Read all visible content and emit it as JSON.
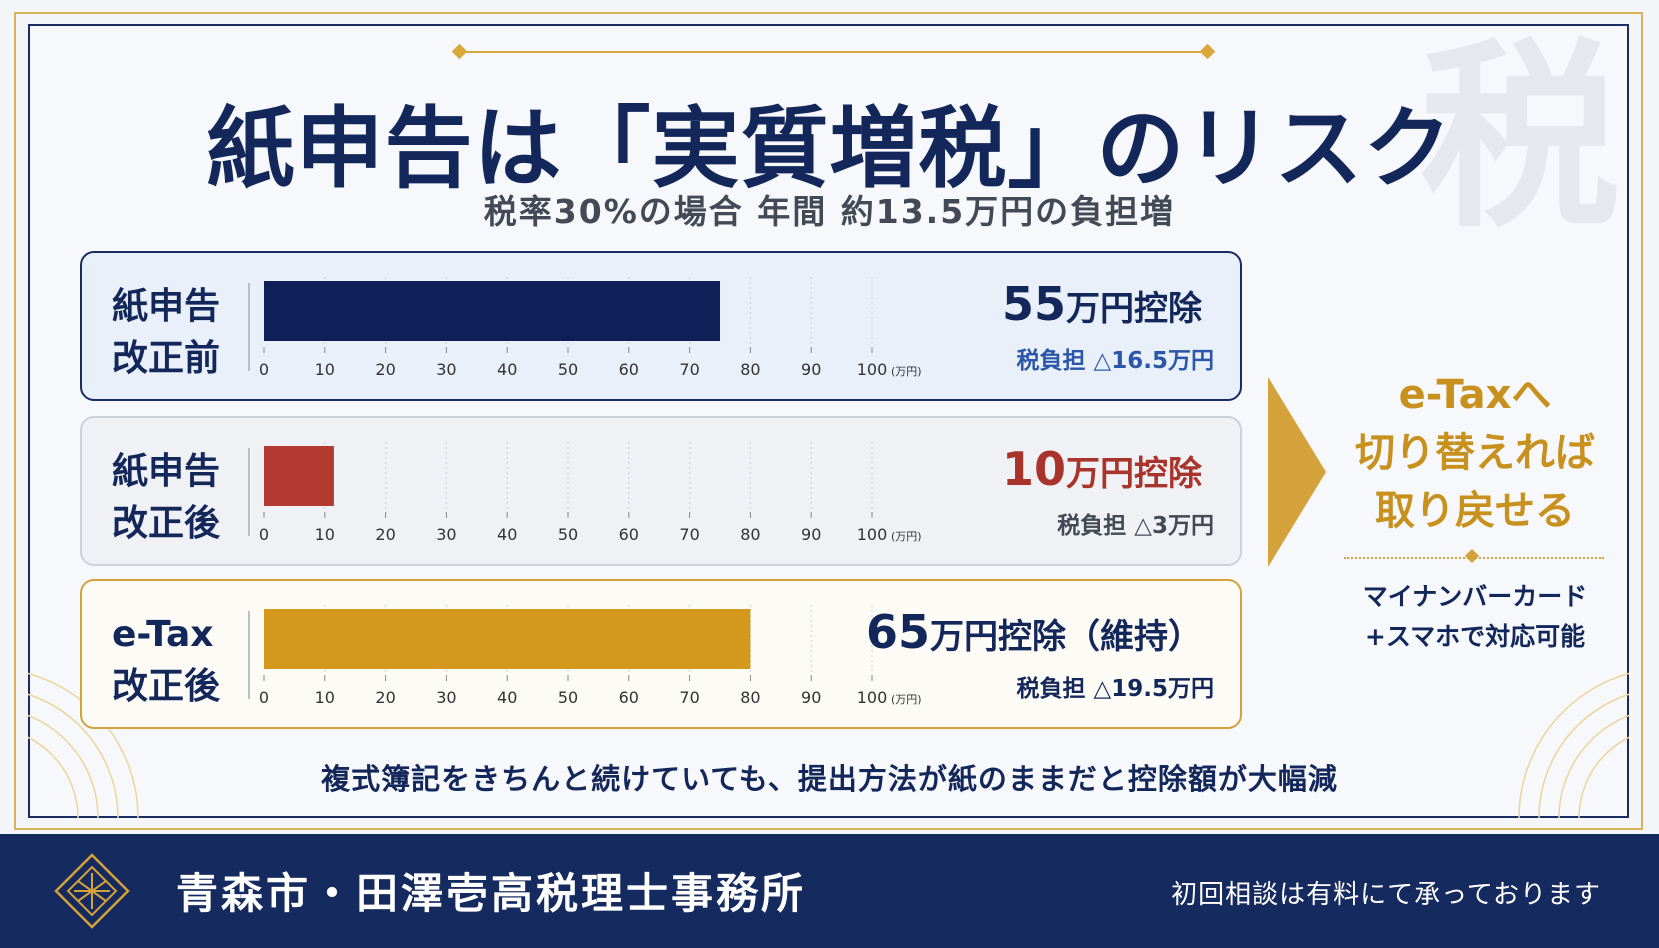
{
  "title": "紙申告は「実質増税」のリスク",
  "subtitle": "税率30%の場合 年間 約13.5万円の負担増",
  "background_kanji": "税",
  "chart_data": {
    "type": "bar",
    "orientation": "horizontal",
    "x_ticks": [
      "0",
      "10",
      "20",
      "30",
      "40",
      "50",
      "60",
      "70",
      "80",
      "90",
      "100"
    ],
    "x_unit": "(万円)",
    "xlim": [
      0,
      100
    ],
    "rows": [
      {
        "label_line1": "紙申告",
        "label_line2": "改正前",
        "value": 75,
        "color": "#0f1f57",
        "deduction_num": "55",
        "deduction_unit": "万円控除",
        "deduction_suffix": "",
        "deduction_color": "#13275a",
        "tax_text": "税負担 △16.5万円",
        "tax_color": "#2c56a8"
      },
      {
        "label_line1": "紙申告",
        "label_line2": "改正後",
        "value": 11.5,
        "color": "#b23a30",
        "deduction_num": "10",
        "deduction_unit": "万円控除",
        "deduction_suffix": "",
        "deduction_color": "#a8342b",
        "tax_text": "税負担 △3万円",
        "tax_color": "#444a55"
      },
      {
        "label_line1": "e-Tax",
        "label_line2": "改正後",
        "value": 80,
        "color": "#d4981c",
        "deduction_num": "65",
        "deduction_unit": "万円控除",
        "deduction_suffix": "（維持）",
        "deduction_color": "#13275a",
        "tax_text": "税負担 △19.5万円",
        "tax_color": "#13275a"
      }
    ]
  },
  "cta": {
    "line1": "e-Taxへ",
    "line2": "切り替えれば",
    "line3": "取り戻せる",
    "note_line1": "マイナンバーカード",
    "note_line2": "+スマホで対応可能"
  },
  "caption": "複式簿記をきちんと続けていても、提出方法が紙のままだと控除額が大幅減",
  "footer": {
    "office_name": "青森市・田澤壱高税理士事務所",
    "note": "初回相談は有料にて承っております"
  },
  "colors": {
    "navy": "#13275a",
    "gold": "#d4a23a",
    "red": "#a8342b"
  }
}
